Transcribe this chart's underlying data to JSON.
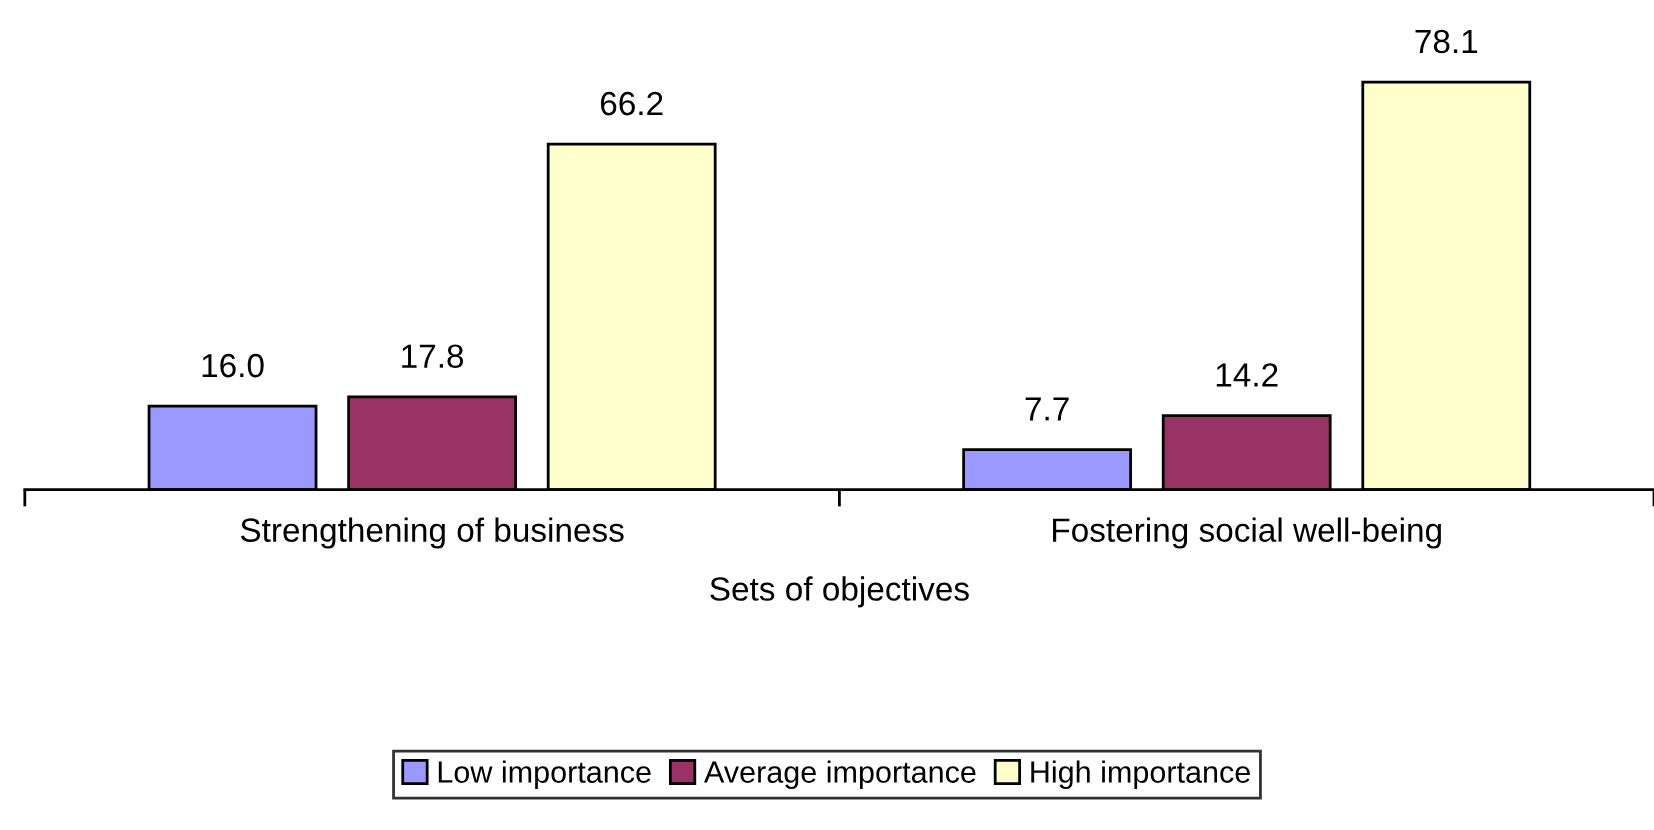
{
  "chart_data": {
    "type": "bar",
    "xlabel": "Sets of objectives",
    "categories": [
      "Strengthening of business",
      "Fostering social well-being"
    ],
    "series": [
      {
        "name": "Low importance",
        "color": "#9999ff",
        "values": [
          16.0,
          7.7
        ],
        "value_labels": [
          "16.0",
          "7.7"
        ]
      },
      {
        "name": "Average importance",
        "color": "#993366",
        "values": [
          17.8,
          14.2
        ],
        "value_labels": [
          "17.8",
          "14.2"
        ]
      },
      {
        "name": "High importance",
        "color": "#ffffcc",
        "values": [
          66.2,
          78.1
        ],
        "value_labels": [
          "66.2",
          "78.1"
        ]
      }
    ],
    "grid": false,
    "legend": "bottom"
  }
}
